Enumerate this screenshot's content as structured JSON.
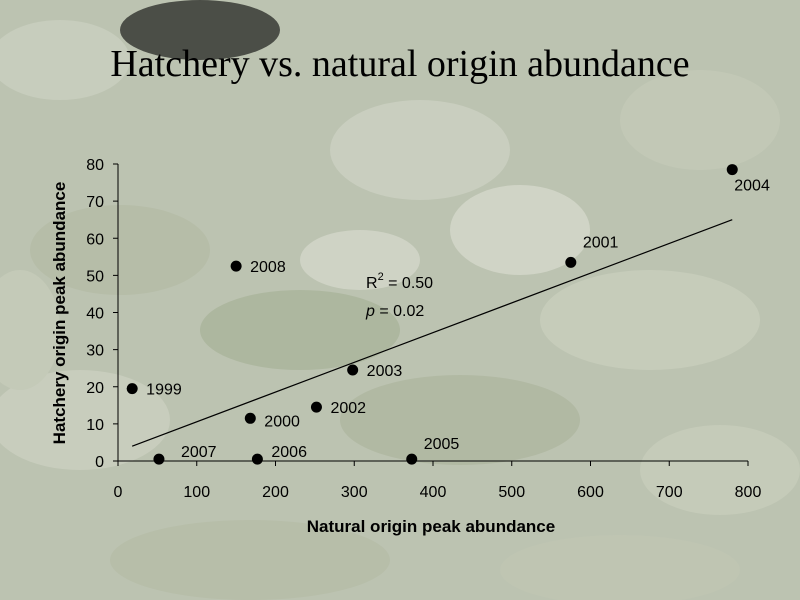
{
  "chart_data": {
    "type": "scatter",
    "title": "Hatchery vs. natural origin abundance",
    "xlabel": "Natural origin peak abundance",
    "ylabel": "Hatchery origin peak abundance",
    "xlim": [
      0,
      800
    ],
    "ylim": [
      0,
      80
    ],
    "xticks": [
      "0",
      "100",
      "200",
      "300",
      "400",
      "500",
      "600",
      "700",
      "800"
    ],
    "yticks": [
      "0",
      "10",
      "20",
      "30",
      "40",
      "50",
      "60",
      "70",
      "80"
    ],
    "grid": false,
    "legend": "none",
    "points": [
      {
        "label": "1999",
        "x": 18,
        "y": 19.5
      },
      {
        "label": "2000",
        "x": 168,
        "y": 11.5
      },
      {
        "label": "2001",
        "x": 575,
        "y": 53.5
      },
      {
        "label": "2002",
        "x": 252,
        "y": 14.5
      },
      {
        "label": "2003",
        "x": 298,
        "y": 24.5
      },
      {
        "label": "2004",
        "x": 780,
        "y": 78.5
      },
      {
        "label": "2005",
        "x": 373,
        "y": 0.5
      },
      {
        "label": "2006",
        "x": 177,
        "y": 0.5
      },
      {
        "label": "2007",
        "x": 52,
        "y": 0.5
      },
      {
        "label": "2008",
        "x": 150,
        "y": 52.5
      }
    ],
    "trendline": {
      "x": [
        18,
        780
      ],
      "y": [
        4,
        65
      ]
    },
    "annotations": {
      "r_label": "R",
      "r_exp": "2",
      "r_value": " = 0.50",
      "p_label": "p",
      "p_value": " = 0.02"
    },
    "colors": {
      "points": "#000000",
      "line": "#000000",
      "text": "#000000",
      "background": "#b9c0ae"
    }
  }
}
